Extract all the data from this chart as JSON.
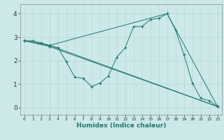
{
  "xlabel": "Humidex (Indice chaleur)",
  "ylabel": "",
  "background_color": "#cce8e8",
  "line_color": "#1a7a6e",
  "xlim": [
    -0.5,
    23.5
  ],
  "ylim": [
    -0.3,
    4.4
  ],
  "xticks": [
    0,
    1,
    2,
    3,
    4,
    5,
    6,
    7,
    8,
    9,
    10,
    11,
    12,
    13,
    14,
    15,
    16,
    17,
    18,
    19,
    20,
    21,
    22,
    23
  ],
  "yticks": [
    0,
    1,
    2,
    3,
    4
  ],
  "grid_color": "#b8d8d8",
  "series": [
    {
      "x": [
        0,
        1,
        2,
        3,
        4,
        5,
        6,
        7,
        8,
        9,
        10,
        11,
        12,
        13,
        14,
        15,
        16,
        17,
        18,
        19,
        20,
        21,
        22,
        23
      ],
      "y": [
        2.85,
        2.85,
        2.75,
        2.65,
        2.55,
        1.95,
        1.3,
        1.25,
        0.9,
        1.05,
        1.35,
        2.15,
        2.55,
        3.45,
        3.45,
        3.75,
        3.8,
        4.0,
        3.3,
        2.25,
        1.05,
        0.4,
        0.3,
        0.05
      ]
    },
    {
      "x": [
        0,
        3,
        23
      ],
      "y": [
        2.85,
        2.65,
        0.05
      ]
    },
    {
      "x": [
        0,
        3,
        17,
        23
      ],
      "y": [
        2.85,
        2.65,
        4.0,
        0.05
      ]
    },
    {
      "x": [
        0,
        3,
        23
      ],
      "y": [
        2.85,
        2.6,
        0.05
      ]
    }
  ]
}
